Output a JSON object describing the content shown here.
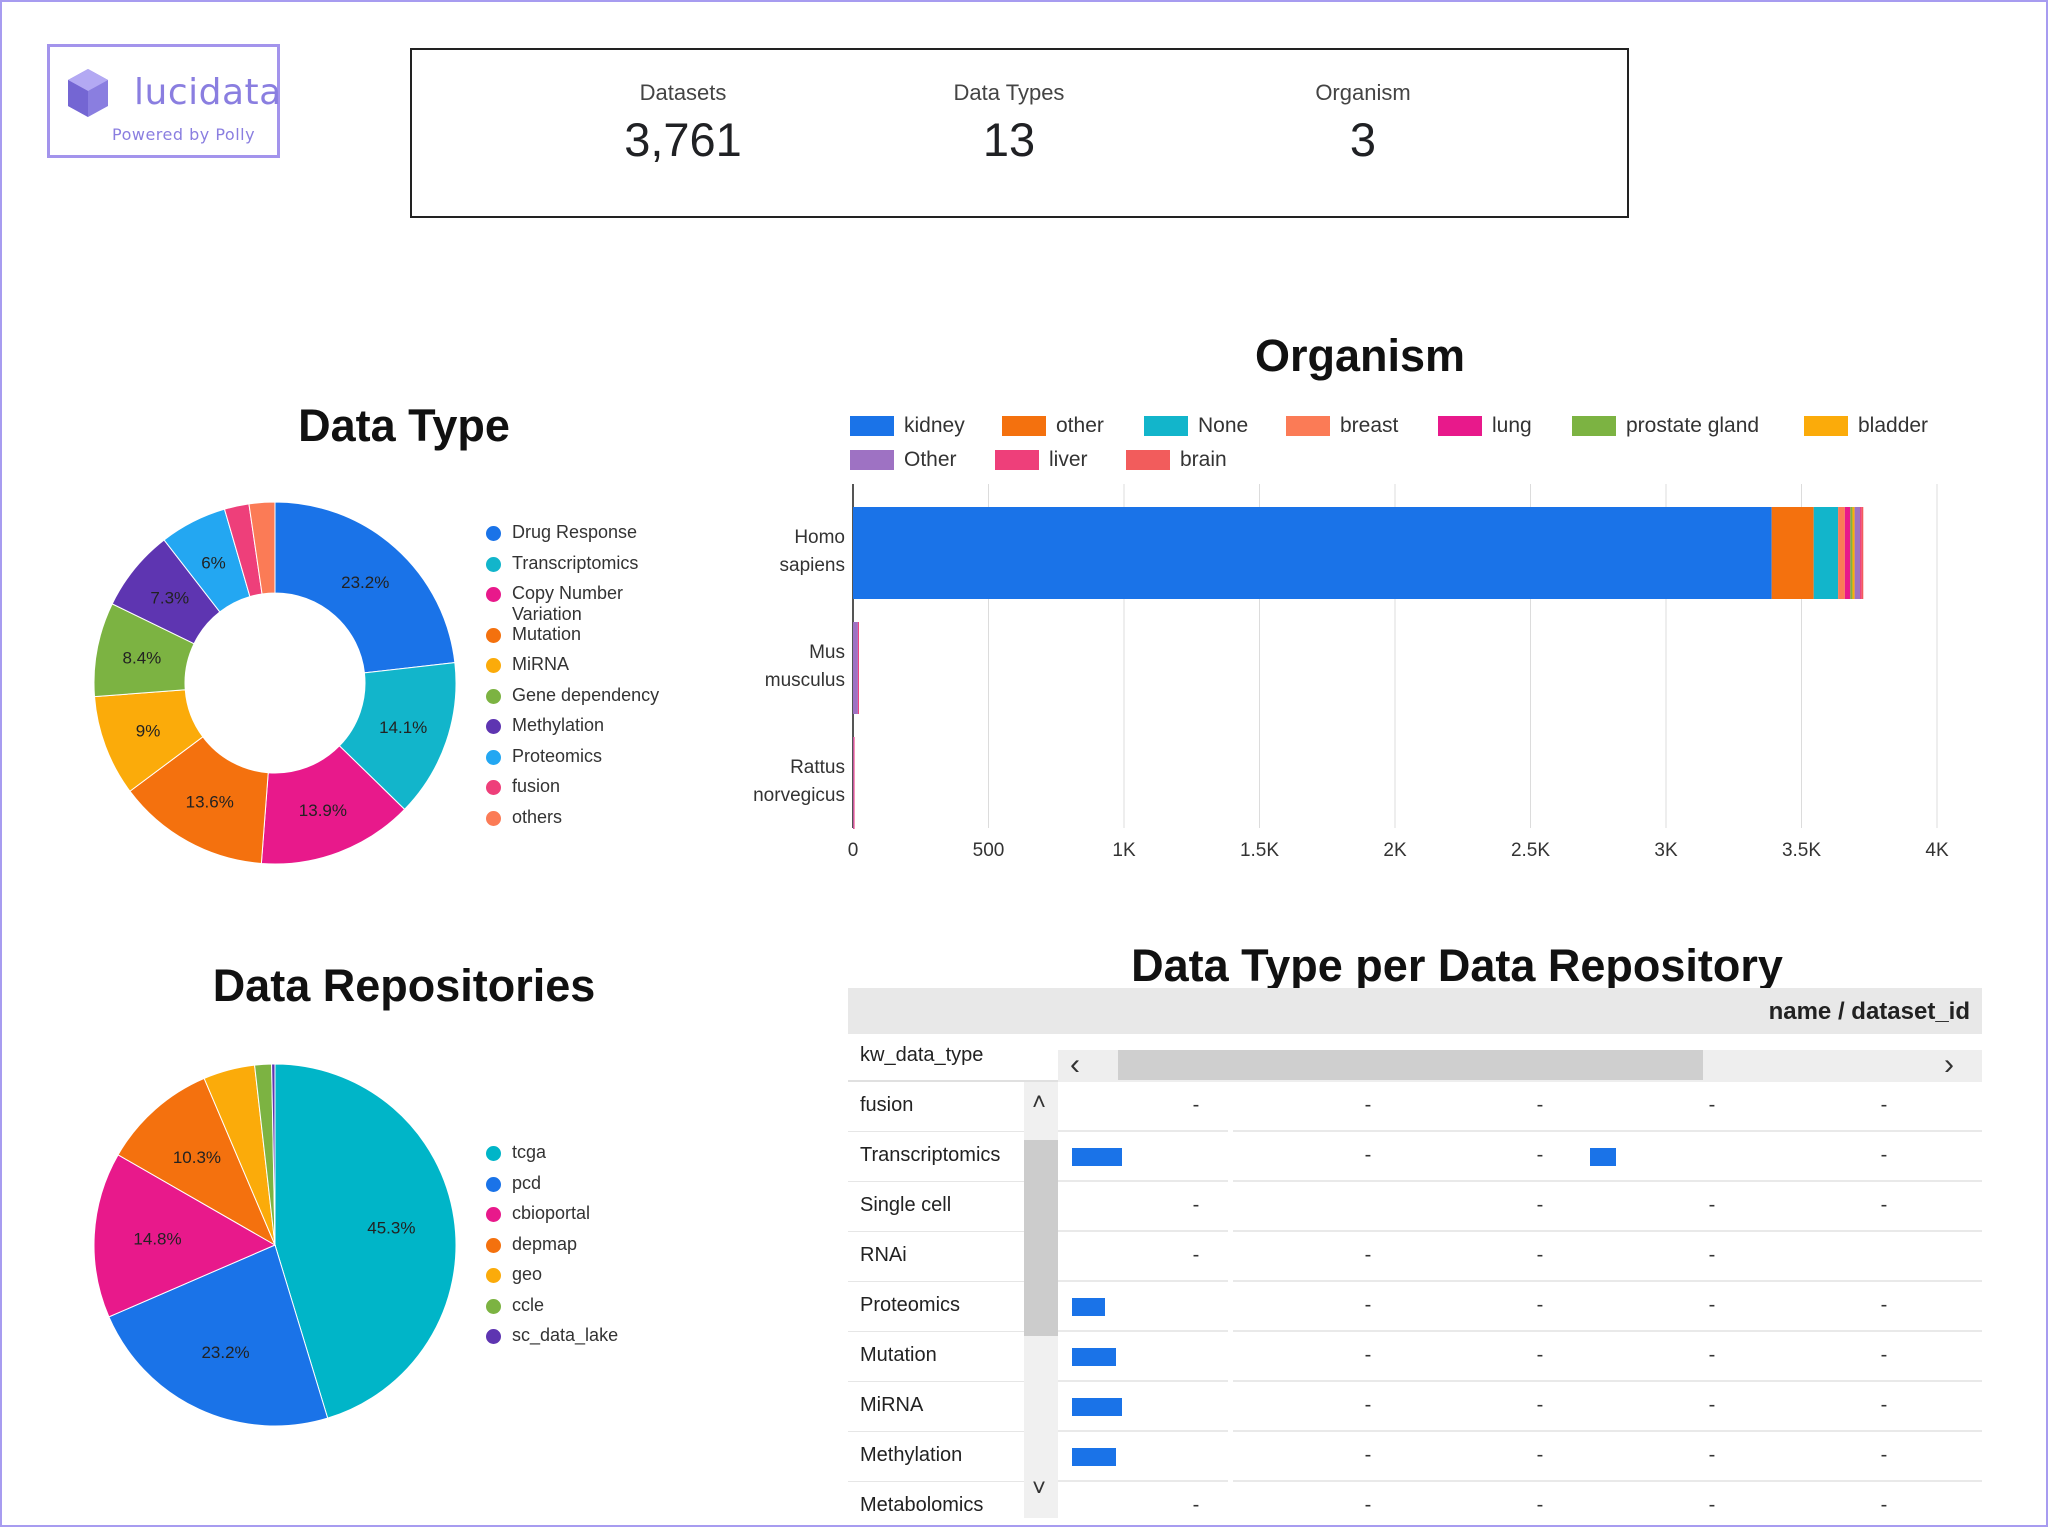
{
  "brand": {
    "name": "lucidata",
    "tagline": "Powered by Polly",
    "color": "#8a7ee0"
  },
  "scorecards": [
    {
      "label": "Datasets",
      "value": "3,761"
    },
    {
      "label": "Data Types",
      "value": "13"
    },
    {
      "label": "Organism",
      "value": "3"
    }
  ],
  "data_type_chart": {
    "title": "Data Type",
    "legend": [
      "Drug Response",
      "Transcriptomics",
      "Copy Number Variation",
      "Mutation",
      "MiRNA",
      "Gene dependency",
      "Methylation",
      "Proteomics",
      "fusion",
      "others"
    ]
  },
  "organism_chart": {
    "title": "Organism",
    "legend": [
      "kidney",
      "other",
      "None",
      "breast",
      "lung",
      "prostate gland",
      "bladder",
      "Other",
      "liver",
      "brain"
    ],
    "y_labels": [
      "Homo sapiens",
      "Mus musculus",
      "Rattus norvegicus"
    ],
    "ticks": [
      "0",
      "500",
      "1K",
      "1.5K",
      "2K",
      "2.5K",
      "3K",
      "3.5K",
      "4K"
    ]
  },
  "repo_chart": {
    "title": "Data Repositories",
    "legend": [
      "tcga",
      "pcd",
      "cbioportal",
      "depmap",
      "geo",
      "ccle",
      "sc_data_lake"
    ]
  },
  "pivot": {
    "title": "Data Type per Data Repository",
    "column_header": "name / dataset_id",
    "row_header": "kw_data_type",
    "rows": [
      {
        "label": "fusion",
        "cells": [
          "",
          "-",
          "-",
          "-",
          "-",
          "-"
        ]
      },
      {
        "label": "Transcriptomics",
        "cells": [
          "bar:1.0",
          "",
          "-",
          "-",
          "bar:0.5",
          "-"
        ]
      },
      {
        "label": "Single cell",
        "cells": [
          "",
          "-",
          "",
          "-",
          "-",
          "-"
        ]
      },
      {
        "label": "RNAi",
        "cells": [
          "",
          "-",
          "-",
          "-",
          "-",
          ""
        ]
      },
      {
        "label": "Proteomics",
        "cells": [
          "bar:0.65",
          "",
          "-",
          "-",
          "-",
          "-"
        ]
      },
      {
        "label": "Mutation",
        "cells": [
          "bar:0.88",
          "",
          "-",
          "-",
          "-",
          "-"
        ]
      },
      {
        "label": "MiRNA",
        "cells": [
          "bar:1.0",
          "",
          "-",
          "-",
          "-",
          "-"
        ]
      },
      {
        "label": "Methylation",
        "cells": [
          "bar:0.88",
          "",
          "-",
          "-",
          "-",
          "-"
        ]
      },
      {
        "label": "Metabolomics",
        "cells": [
          "",
          "-",
          "-",
          "-",
          "-",
          "-"
        ]
      }
    ]
  },
  "chart_data": [
    {
      "type": "pie",
      "title": "Data Type",
      "donut": true,
      "labels": [
        "Drug Response",
        "Transcriptomics",
        "Copy Number Variation",
        "Mutation",
        "MiRNA",
        "Gene dependency",
        "Methylation",
        "Proteomics",
        "fusion",
        "others"
      ],
      "values": [
        23.2,
        14.1,
        13.9,
        13.6,
        9.0,
        8.4,
        7.3,
        6.0,
        2.2,
        2.3
      ],
      "data_labels": [
        "23.2%",
        "14.1%",
        "13.9%",
        "13.6%",
        "9%",
        "8.4%",
        "7.3%",
        "6%",
        "",
        ""
      ],
      "colors": [
        "#1a73e8",
        "#12b5cb",
        "#e8198b",
        "#f4710e",
        "#fbab0a",
        "#7cb342",
        "#5e35b1",
        "#23a7f2",
        "#ee3f7a",
        "#fb7b56"
      ],
      "legend_position": "right"
    },
    {
      "type": "bar",
      "orientation": "horizontal",
      "stacked": true,
      "title": "Organism",
      "categories": [
        "Homo sapiens",
        "Mus musculus",
        "Rattus norvegicus"
      ],
      "series": [
        {
          "name": "kidney",
          "color": "#1a73e8",
          "values": [
            3390,
            0,
            0
          ]
        },
        {
          "name": "other",
          "color": "#f4710e",
          "values": [
            155,
            0,
            0
          ]
        },
        {
          "name": "None",
          "color": "#12b5cb",
          "values": [
            90,
            0,
            0
          ]
        },
        {
          "name": "breast",
          "color": "#fb7b56",
          "values": [
            25,
            0,
            0
          ]
        },
        {
          "name": "lung",
          "color": "#e8198b",
          "values": [
            20,
            0,
            0
          ]
        },
        {
          "name": "prostate gland",
          "color": "#7cb342",
          "values": [
            8,
            0,
            0
          ]
        },
        {
          "name": "bladder",
          "color": "#fbab0a",
          "values": [
            8,
            0,
            0
          ]
        },
        {
          "name": "Other",
          "color": "#9e72c3",
          "values": [
            20,
            18,
            2
          ]
        },
        {
          "name": "liver",
          "color": "#ee3f7a",
          "values": [
            6,
            4,
            1
          ]
        },
        {
          "name": "brain",
          "color": "#f25c5c",
          "values": [
            6,
            0,
            0
          ]
        }
      ],
      "xlim": [
        0,
        4000
      ],
      "ticks": [
        0,
        500,
        1000,
        1500,
        2000,
        2500,
        3000,
        3500,
        4000
      ],
      "tick_labels": [
        "0",
        "500",
        "1K",
        "1.5K",
        "2K",
        "2.5K",
        "3K",
        "3.5K",
        "4K"
      ],
      "grid": true,
      "legend_position": "top"
    },
    {
      "type": "pie",
      "title": "Data Repositories",
      "donut": false,
      "labels": [
        "tcga",
        "pcd",
        "cbioportal",
        "depmap",
        "geo",
        "ccle",
        "sc_data_lake"
      ],
      "values": [
        45.3,
        23.2,
        14.8,
        10.3,
        4.6,
        1.5,
        0.3
      ],
      "data_labels": [
        "45.3%",
        "23.2%",
        "14.8%",
        "10.3%",
        "",
        "",
        ""
      ],
      "colors": [
        "#00b5c8",
        "#1a73e8",
        "#e8198b",
        "#f4710e",
        "#fbab0a",
        "#7cb342",
        "#5e35b1"
      ],
      "legend_position": "right"
    }
  ]
}
